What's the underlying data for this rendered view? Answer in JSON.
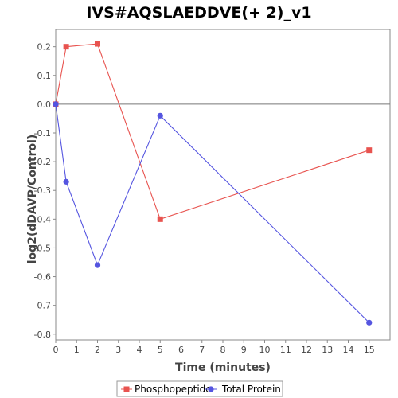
{
  "chart_data": {
    "type": "line",
    "title": "IVS#AQSLAEDDVE(+ 2)_v1",
    "xlabel": "Time (minutes)",
    "ylabel": "log2(dDAVP/Control)",
    "xlim": [
      0,
      16
    ],
    "ylim": [
      -0.82,
      0.26
    ],
    "xticks": [
      0,
      1,
      2,
      3,
      4,
      5,
      6,
      7,
      8,
      9,
      10,
      11,
      12,
      13,
      14,
      15
    ],
    "yticks": [
      0.2,
      0.1,
      0.0,
      -0.1,
      -0.2,
      -0.3,
      -0.4,
      -0.5,
      -0.6,
      -0.7,
      -0.8
    ],
    "ytick_labels": [
      "0.2",
      "0.1",
      "0.0",
      "-0.1",
      "-0.2",
      "-0.3",
      "-0.4",
      "-0.5",
      "-0.6",
      "-0.7",
      "-0.8"
    ],
    "zero_line": true,
    "grid": false,
    "legend_position": "bottom",
    "series": [
      {
        "name": "Phosphopeptide",
        "color": "#e8534f",
        "marker": "square",
        "x": [
          0,
          0.5,
          2,
          5,
          15
        ],
        "y": [
          0.0,
          0.2,
          0.21,
          -0.4,
          -0.16
        ]
      },
      {
        "name": "Total Protein",
        "color": "#5555e0",
        "marker": "circle",
        "x": [
          0,
          0.5,
          2,
          5,
          15
        ],
        "y": [
          0.0,
          -0.27,
          -0.56,
          -0.04,
          -0.76
        ]
      }
    ]
  }
}
